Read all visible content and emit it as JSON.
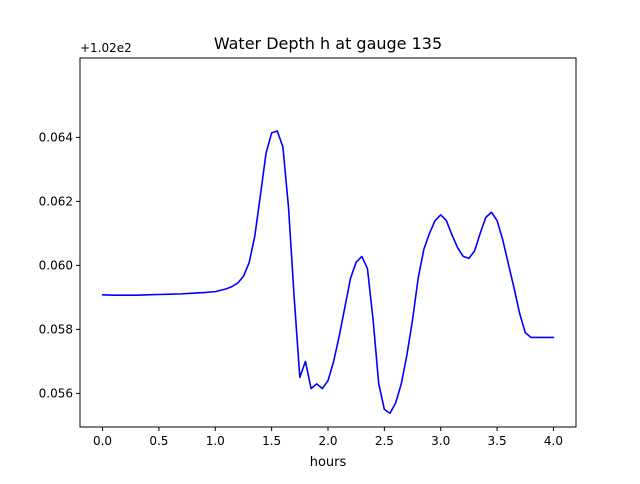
{
  "chart_data": {
    "type": "line",
    "title": "Water Depth h at gauge 135",
    "xlabel": "hours",
    "ylabel": "",
    "y_offset_label": "+1.02e2",
    "xlim": [
      -0.2,
      4.2
    ],
    "ylim": [
      0.05495,
      0.06648
    ],
    "xticks": [
      0.0,
      0.5,
      1.0,
      1.5,
      2.0,
      2.5,
      3.0,
      3.5,
      4.0
    ],
    "xtick_labels": [
      "0.0",
      "0.5",
      "1.0",
      "1.5",
      "2.0",
      "2.5",
      "3.0",
      "3.5",
      "4.0"
    ],
    "yticks": [
      0.056,
      0.058,
      0.06,
      0.062,
      0.064
    ],
    "ytick_labels": [
      "0.056",
      "0.058",
      "0.060",
      "0.062",
      "0.064"
    ],
    "grid": false,
    "series": [
      {
        "color": "#0000ff",
        "x": [
          0.0,
          0.1,
          0.2,
          0.3,
          0.4,
          0.5,
          0.6,
          0.7,
          0.8,
          0.9,
          1.0,
          1.1,
          1.15,
          1.2,
          1.25,
          1.3,
          1.35,
          1.4,
          1.45,
          1.5,
          1.55,
          1.6,
          1.65,
          1.7,
          1.75,
          1.8,
          1.85,
          1.9,
          1.95,
          2.0,
          2.05,
          2.1,
          2.15,
          2.2,
          2.25,
          2.3,
          2.35,
          2.4,
          2.45,
          2.5,
          2.55,
          2.6,
          2.65,
          2.7,
          2.75,
          2.8,
          2.85,
          2.9,
          2.95,
          3.0,
          3.05,
          3.1,
          3.15,
          3.2,
          3.25,
          3.3,
          3.35,
          3.4,
          3.45,
          3.5,
          3.55,
          3.6,
          3.65,
          3.7,
          3.75,
          3.8,
          3.85,
          3.9,
          3.95,
          4.0
        ],
        "y": [
          0.05908,
          0.05907,
          0.05907,
          0.05907,
          0.05908,
          0.05909,
          0.0591,
          0.05911,
          0.05913,
          0.05915,
          0.05918,
          0.05927,
          0.05934,
          0.05945,
          0.05966,
          0.06008,
          0.0609,
          0.06218,
          0.0635,
          0.06414,
          0.0642,
          0.0637,
          0.0618,
          0.059,
          0.0565,
          0.057,
          0.05615,
          0.0563,
          0.05615,
          0.0564,
          0.057,
          0.0578,
          0.0587,
          0.0596,
          0.0601,
          0.06028,
          0.0599,
          0.0583,
          0.0563,
          0.0555,
          0.05538,
          0.0557,
          0.0563,
          0.0572,
          0.0583,
          0.0596,
          0.0605,
          0.061,
          0.0614,
          0.06158,
          0.0614,
          0.06095,
          0.06055,
          0.06028,
          0.06022,
          0.06045,
          0.061,
          0.0615,
          0.06166,
          0.0614,
          0.0608,
          0.06005,
          0.0593,
          0.0585,
          0.0579,
          0.05775,
          0.05775,
          0.05775,
          0.05775,
          0.05775
        ]
      }
    ]
  }
}
